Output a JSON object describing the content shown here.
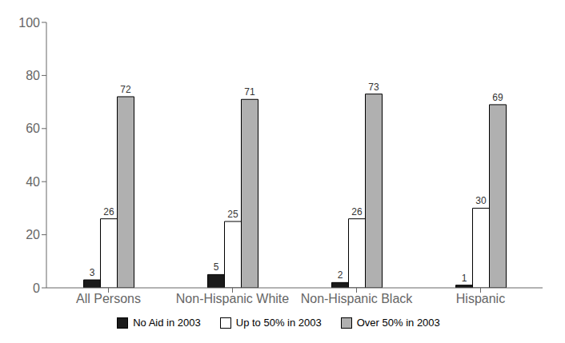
{
  "chart_data": {
    "type": "bar",
    "categories": [
      "All Persons",
      "Non-Hispanic White",
      "Non-Hispanic Black",
      "Hispanic"
    ],
    "series": [
      {
        "name": "No Aid in 2003",
        "color": "#1a1a1a",
        "values": [
          3,
          5,
          2,
          1
        ]
      },
      {
        "name": "Up to 50% in 2003",
        "color": "#ffffff",
        "values": [
          26,
          25,
          26,
          30
        ]
      },
      {
        "name": "Over 50% in 2003",
        "color": "#b0b0b0",
        "values": [
          72,
          71,
          73,
          69
        ]
      }
    ],
    "ylim": [
      0,
      100
    ],
    "yticks": [
      0,
      20,
      40,
      60,
      80,
      100
    ],
    "grid": false,
    "legend": "bottom",
    "data_labels": true
  }
}
